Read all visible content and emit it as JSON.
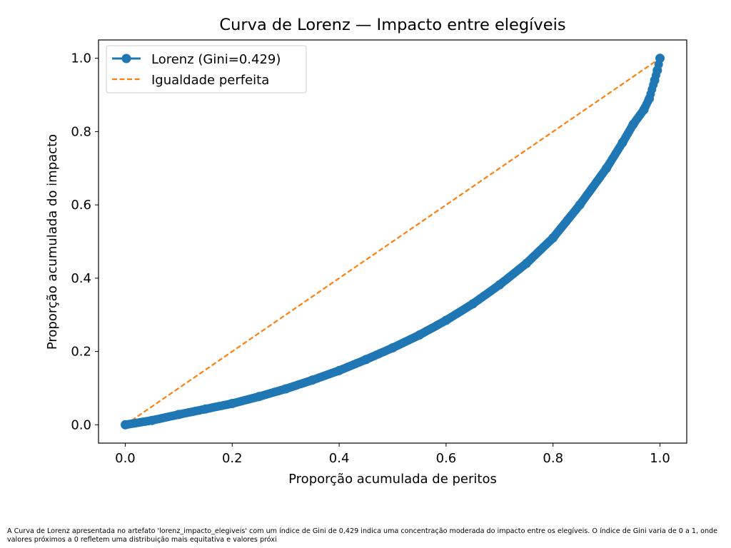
{
  "chart_data": {
    "type": "line",
    "title": "Curva de Lorenz — Impacto entre elegíveis",
    "xlabel": "Proporção acumulada de peritos",
    "ylabel": "Proporção acumulada do impacto",
    "xlim": [
      -0.05,
      1.05
    ],
    "ylim": [
      -0.05,
      1.05
    ],
    "xticks": [
      "0.0",
      "0.2",
      "0.4",
      "0.6",
      "0.8",
      "1.0"
    ],
    "yticks": [
      "0.0",
      "0.2",
      "0.4",
      "0.6",
      "0.8",
      "1.0"
    ],
    "grid": false,
    "legend_position": "upper-left",
    "series": [
      {
        "name": "Lorenz (Gini=0.429)",
        "style": "line-with-markers",
        "color": "#1f77b4",
        "x": [
          0.0,
          0.05,
          0.1,
          0.15,
          0.2,
          0.25,
          0.3,
          0.35,
          0.4,
          0.45,
          0.5,
          0.55,
          0.6,
          0.65,
          0.7,
          0.75,
          0.8,
          0.85,
          0.9,
          0.93,
          0.95,
          0.97,
          0.98,
          0.99,
          0.995,
          1.0
        ],
        "y": [
          0.0,
          0.012,
          0.028,
          0.043,
          0.058,
          0.077,
          0.098,
          0.122,
          0.148,
          0.178,
          0.21,
          0.245,
          0.285,
          0.33,
          0.382,
          0.44,
          0.51,
          0.6,
          0.7,
          0.77,
          0.82,
          0.86,
          0.89,
          0.94,
          0.967,
          1.0
        ]
      },
      {
        "name": "Igualdade perfeita",
        "style": "dashed",
        "color": "#ff7f0e",
        "x": [
          0.0,
          1.0
        ],
        "y": [
          0.0,
          1.0
        ]
      }
    ]
  },
  "caption": "A Curva de Lorenz apresentada no artefato 'lorenz_impacto_elegiveis' com um índice de Gini de 0,429 indica uma concentração moderada do impacto entre os elegíveis. O índice de Gini varia de 0 a 1, onde valores próximos a 0 refletem uma distribuição mais equitativa e valores próxi"
}
